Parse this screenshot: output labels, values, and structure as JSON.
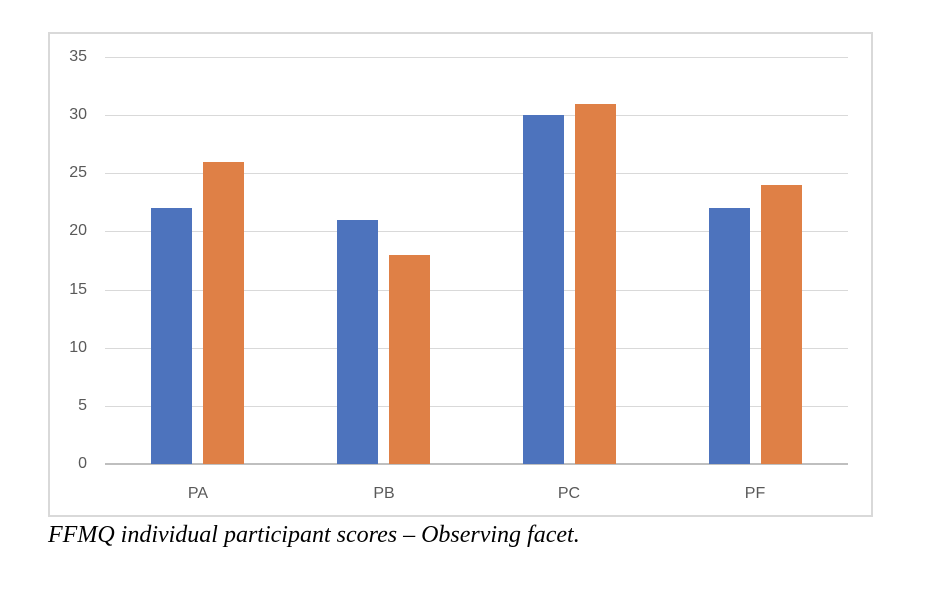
{
  "chart_data": {
    "type": "bar",
    "title": "",
    "xlabel": "",
    "ylabel": "",
    "categories": [
      "PA",
      "PB",
      "PC",
      "PF"
    ],
    "series": [
      {
        "name": "blue",
        "color": "#4D73BD",
        "values": [
          22,
          21,
          30,
          22
        ]
      },
      {
        "name": "orange",
        "color": "#DF8046",
        "values": [
          26,
          18,
          31,
          24
        ]
      }
    ],
    "ylim": [
      0,
      35
    ],
    "yticks": [
      0,
      5,
      10,
      15,
      20,
      25,
      30,
      35
    ],
    "grid": "horizontal",
    "legend_position": "none"
  },
  "caption": "FFMQ individual participant scores – Observing facet.",
  "style": {
    "bar_blue": "#4D73BD",
    "bar_orange": "#DF8046",
    "gridline_color": "#D9D9D9",
    "axis_line_color": "#BFBFBF",
    "tick_label_color": "#595959",
    "chart_border_color": "#D9D9D9",
    "background": "#FFFFFF"
  }
}
